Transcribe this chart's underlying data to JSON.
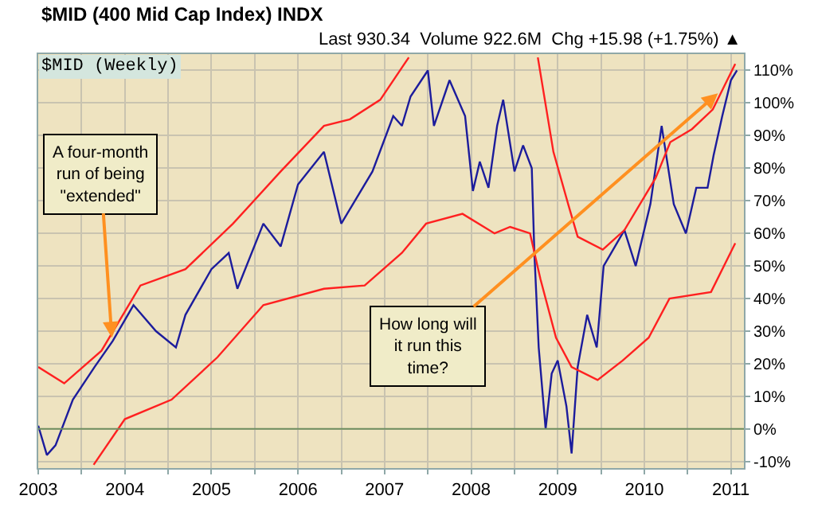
{
  "chart_data": {
    "type": "line",
    "title": "$MID (400 Mid Cap Index) INDX",
    "subtitle": "Last 930.34  Volume 922.6M  Chg +15.98 (+1.75%) ▲",
    "annotations": [
      "$MID (Weekly)",
      {
        "text": "A four-month run of being \"extended\"",
        "x": 2003.85,
        "y": 28
      },
      {
        "text": "How long will it run this time?",
        "x": 2010.85,
        "y": 103
      }
    ],
    "series": [
      {
        "color": "#1c1c9c",
        "x": [
          2003.0,
          2003.1,
          2003.2,
          2003.4,
          2003.65,
          2003.86,
          2004.1,
          2004.36,
          2004.59,
          2004.7,
          2005.0,
          2005.2,
          2005.3,
          2005.6,
          2005.8,
          2006.0,
          2006.3,
          2006.5,
          2006.86,
          2007.1,
          2007.2,
          2007.3,
          2007.5,
          2007.57,
          2007.75,
          2007.93,
          2008.02,
          2008.1,
          2008.2,
          2008.3,
          2008.37,
          2008.5,
          2008.6,
          2008.7,
          2008.73,
          2008.78,
          2008.86,
          2008.93,
          2009.0,
          2009.1,
          2009.16,
          2009.23,
          2009.34,
          2009.45,
          2009.53,
          2009.77,
          2009.9,
          2010.07,
          2010.2,
          2010.34,
          2010.48,
          2010.6,
          2010.73,
          2010.8,
          2010.9,
          2011.0,
          2011.07
        ],
        "values": [
          1,
          -8,
          -5,
          9,
          19,
          27,
          38,
          30,
          25,
          35,
          49,
          54,
          43,
          63,
          56,
          75,
          85,
          63,
          79,
          96,
          93,
          102,
          110,
          93,
          107,
          96,
          73,
          82,
          74,
          93,
          101,
          79,
          87,
          80,
          54,
          25,
          0,
          17,
          21,
          7,
          -7.5,
          19,
          35,
          25,
          50,
          61,
          50,
          69,
          93,
          69,
          60,
          74,
          74,
          84,
          96,
          107,
          110
        ]
      },
      {
        "color": "#ff2020",
        "x": [
          2003.0,
          2003.3,
          2003.73,
          2004.18,
          2004.7,
          2005.25,
          2005.8,
          2006.3,
          2006.6,
          2006.95,
          2007.28,
          2008.0,
          2008.77,
          2008.95,
          2009.12,
          2009.23,
          2009.52,
          2009.77,
          2010.13,
          2010.3,
          2010.55,
          2010.79,
          2011.05
        ],
        "values": [
          19,
          14,
          24,
          44,
          49,
          63,
          79,
          93,
          95,
          101,
          114,
          null,
          114,
          85,
          69,
          59,
          55,
          61,
          77,
          88,
          92,
          98,
          112
        ]
      },
      {
        "color": "#ff2020",
        "x": [
          2003.64,
          2004.0,
          2004.54,
          2005.07,
          2005.6,
          2006.3,
          2006.77,
          2007.2,
          2007.48,
          2007.9,
          2008.27,
          2008.45,
          2008.68,
          2008.8,
          2008.98,
          2009.16,
          2009.46,
          2009.75,
          2010.05,
          2010.29,
          2010.77,
          2011.05
        ],
        "values": [
          -11,
          3,
          9,
          22,
          38,
          43,
          44,
          54,
          63,
          66,
          60,
          62,
          60,
          46,
          28,
          19,
          15,
          21,
          28,
          40,
          42,
          57
        ]
      }
    ],
    "xlim": [
      2003.0,
      2011.15
    ],
    "xticks": [
      2003,
      {
        "value": 2003.5,
        "label": null
      },
      2004,
      {
        "value": 2004.5,
        "label": null
      },
      2005,
      {
        "value": 2005.5,
        "label": null
      },
      2006,
      {
        "value": 2006.5,
        "label": null
      },
      2007,
      {
        "value": 2007.5,
        "label": null
      },
      2008,
      {
        "value": 2008.5,
        "label": null
      },
      2009,
      {
        "value": 2009.5,
        "label": null
      },
      2010,
      {
        "value": 2010.5,
        "label": null
      },
      2011
    ],
    "ylim": [
      -12,
      115
    ],
    "yticks": [
      {
        "value": -10,
        "label": "-10%"
      },
      {
        "value": 0,
        "label": "0%"
      },
      {
        "value": 10,
        "label": "10%"
      },
      {
        "value": 20,
        "label": "20%"
      },
      {
        "value": 30,
        "label": "30%"
      },
      {
        "value": 40,
        "label": "40%"
      },
      {
        "value": 50,
        "label": "50%"
      },
      {
        "value": 60,
        "label": "60%"
      },
      {
        "value": 70,
        "label": "70%"
      },
      {
        "value": 80,
        "label": "80%"
      },
      {
        "value": 90,
        "label": "90%"
      },
      {
        "value": 100,
        "label": "100%"
      },
      {
        "value": 110,
        "label": "110%"
      }
    ],
    "ref_lines": [
      {
        "axis": "y",
        "value": 0,
        "color": "#6f8f5f"
      }
    ],
    "grid": true,
    "marker": "none",
    "line_style": "solid"
  }
}
